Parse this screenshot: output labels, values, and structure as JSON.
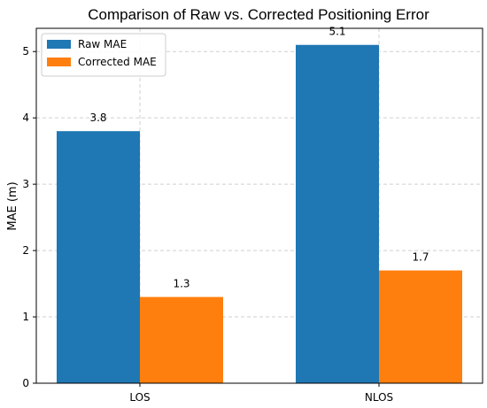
{
  "chart_data": {
    "type": "bar",
    "title": "Comparison of Raw vs. Corrected Positioning Error",
    "xlabel": "",
    "ylabel": "MAE (m)",
    "categories": [
      "LOS",
      "NLOS"
    ],
    "series": [
      {
        "name": "Raw MAE",
        "values": [
          3.8,
          5.1
        ],
        "color": "#1f77b4"
      },
      {
        "name": "Corrected MAE",
        "values": [
          1.3,
          1.7
        ],
        "color": "#ff7f0e"
      }
    ],
    "ylim": [
      0,
      5.35
    ],
    "yticks": [
      0,
      1,
      2,
      3,
      4,
      5
    ],
    "grid": true,
    "legend": "top-left",
    "data_labels": true
  }
}
